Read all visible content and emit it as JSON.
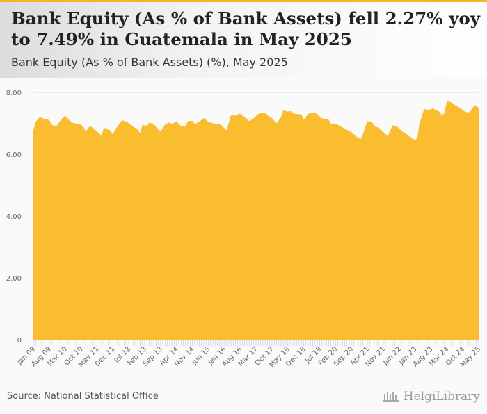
{
  "header": {
    "title": "Bank Equity (As % of Bank Assets) fell 2.27% yoy to 7.49% in Guatemala in May 2025",
    "subtitle": "Bank Equity (As % of Bank Assets) (%), May 2025"
  },
  "footer": {
    "source": "Source: National Statistical Office",
    "logo": "HelgiLibrary"
  },
  "colors": {
    "fill": "#fbbd30",
    "accent": "#f7b32b"
  },
  "chart_data": {
    "type": "area",
    "title": "Bank Equity (As % of Bank Assets) (%), May 2025",
    "xlabel": "",
    "ylabel": "",
    "x_unit": "months since Jan 09",
    "ylim": [
      0,
      8
    ],
    "yticks": [
      0,
      2,
      4,
      6,
      8
    ],
    "ytick_labels": [
      "0",
      "2.00",
      "4.00",
      "6.00",
      "8.00"
    ],
    "xtick_labels": [
      "Jan 09",
      "Aug 09",
      "Mar 10",
      "Oct 10",
      "May 11",
      "Dec 11",
      "Jul 12",
      "Feb 13",
      "Sep 13",
      "Apr 14",
      "Nov 14",
      "Jun 15",
      "Jan 16",
      "Aug 16",
      "Mar 17",
      "Oct 17",
      "May 18",
      "Dec 18",
      "Jul 19",
      "Feb 20",
      "Sep 20",
      "Apr 21",
      "Nov 21",
      "Jun 22",
      "Jan 23",
      "Aug 23",
      "Mar 24",
      "Oct 24",
      "May 25"
    ],
    "xtick_step_months": 7,
    "grid": true,
    "x": [
      0,
      1,
      3,
      4,
      7,
      8,
      10,
      12,
      14,
      16,
      17,
      21,
      22,
      23,
      25,
      28,
      30,
      31,
      34,
      35,
      36,
      39,
      41,
      43,
      46,
      47,
      48,
      50,
      51,
      53,
      55,
      56,
      58,
      60,
      61,
      63,
      65,
      67,
      68,
      70,
      71,
      73,
      75,
      77,
      79,
      82,
      84,
      85,
      87,
      89,
      91,
      93,
      95,
      97,
      99,
      102,
      104,
      105,
      107,
      109,
      110,
      112,
      113,
      115,
      118,
      119,
      121,
      123,
      124,
      127,
      130,
      131,
      133,
      135,
      137,
      140,
      142,
      144,
      145,
      147,
      149,
      150,
      152,
      154,
      156,
      158,
      160,
      163,
      164,
      168,
      169,
      170,
      172,
      174,
      176,
      177,
      178,
      180,
      181,
      182,
      184,
      186,
      188,
      190,
      192,
      194,
      195,
      196
    ],
    "values": [
      6.77,
      7.05,
      7.22,
      7.16,
      7.11,
      6.96,
      6.9,
      7.1,
      7.25,
      7.09,
      7.03,
      6.95,
      6.9,
      6.73,
      6.92,
      6.74,
      6.6,
      6.86,
      6.77,
      6.62,
      6.8,
      7.1,
      7.05,
      6.95,
      6.79,
      6.68,
      6.95,
      6.92,
      7.03,
      6.97,
      6.8,
      6.73,
      6.97,
      7.03,
      6.97,
      7.07,
      6.91,
      6.9,
      7.07,
      7.08,
      6.97,
      7.05,
      7.17,
      7.05,
      7.0,
      6.97,
      6.85,
      6.77,
      7.27,
      7.25,
      7.32,
      7.2,
      7.07,
      7.16,
      7.31,
      7.35,
      7.2,
      7.17,
      6.99,
      7.2,
      7.42,
      7.38,
      7.4,
      7.31,
      7.29,
      7.12,
      7.31,
      7.35,
      7.35,
      7.16,
      7.12,
      6.96,
      6.99,
      6.91,
      6.83,
      6.72,
      6.58,
      6.49,
      6.64,
      7.07,
      7.05,
      6.91,
      6.86,
      6.72,
      6.58,
      6.94,
      6.9,
      6.7,
      6.66,
      6.45,
      6.53,
      7.01,
      7.47,
      7.43,
      7.49,
      7.43,
      7.43,
      7.25,
      7.35,
      7.72,
      7.68,
      7.57,
      7.49,
      7.37,
      7.35,
      7.57,
      7.58,
      7.49
    ]
  }
}
